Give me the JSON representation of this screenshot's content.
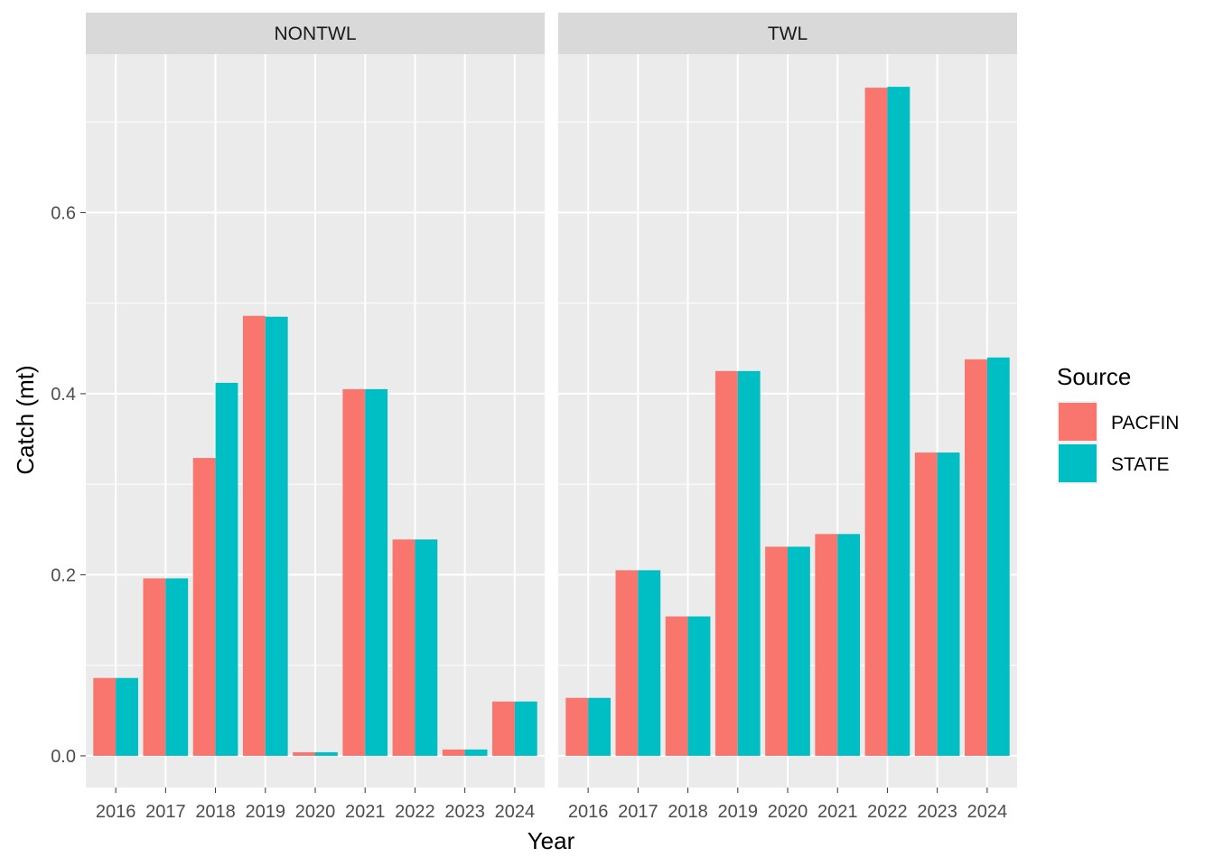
{
  "chart_data": {
    "type": "bar",
    "xlabel": "Year",
    "ylabel": "Catch (mt)",
    "ylim": [
      -0.035,
      0.775
    ],
    "yticks": [
      "0.0",
      "0.2",
      "0.4",
      "0.6"
    ],
    "ytick_values": [
      0,
      0.2,
      0.4,
      0.6
    ],
    "categories": [
      "2016",
      "2017",
      "2018",
      "2019",
      "2020",
      "2021",
      "2022",
      "2023",
      "2024"
    ],
    "grid": true,
    "legend": {
      "title": "Source",
      "position": "right",
      "entries": [
        {
          "name": "PACFIN",
          "color": "#F8766D"
        },
        {
          "name": "STATE",
          "color": "#00BFC4"
        }
      ]
    },
    "colors": {
      "panel_bg": "#EBEBEB",
      "strip_bg": "#D9D9D9",
      "grid": "#FFFFFF"
    },
    "facets": [
      {
        "name": "NONTWL",
        "series": [
          {
            "name": "PACFIN",
            "values": [
              0.086,
              0.196,
              0.329,
              0.486,
              0.004,
              0.405,
              0.239,
              0.007,
              0.06
            ]
          },
          {
            "name": "STATE",
            "values": [
              0.086,
              0.196,
              0.412,
              0.485,
              0.004,
              0.405,
              0.239,
              0.007,
              0.06
            ]
          }
        ]
      },
      {
        "name": "TWL",
        "series": [
          {
            "name": "PACFIN",
            "values": [
              0.064,
              0.205,
              0.154,
              0.425,
              0.231,
              0.245,
              0.738,
              0.335,
              0.438
            ]
          },
          {
            "name": "STATE",
            "values": [
              0.064,
              0.205,
              0.154,
              0.425,
              0.231,
              0.245,
              0.739,
              0.335,
              0.44
            ]
          }
        ]
      }
    ]
  }
}
